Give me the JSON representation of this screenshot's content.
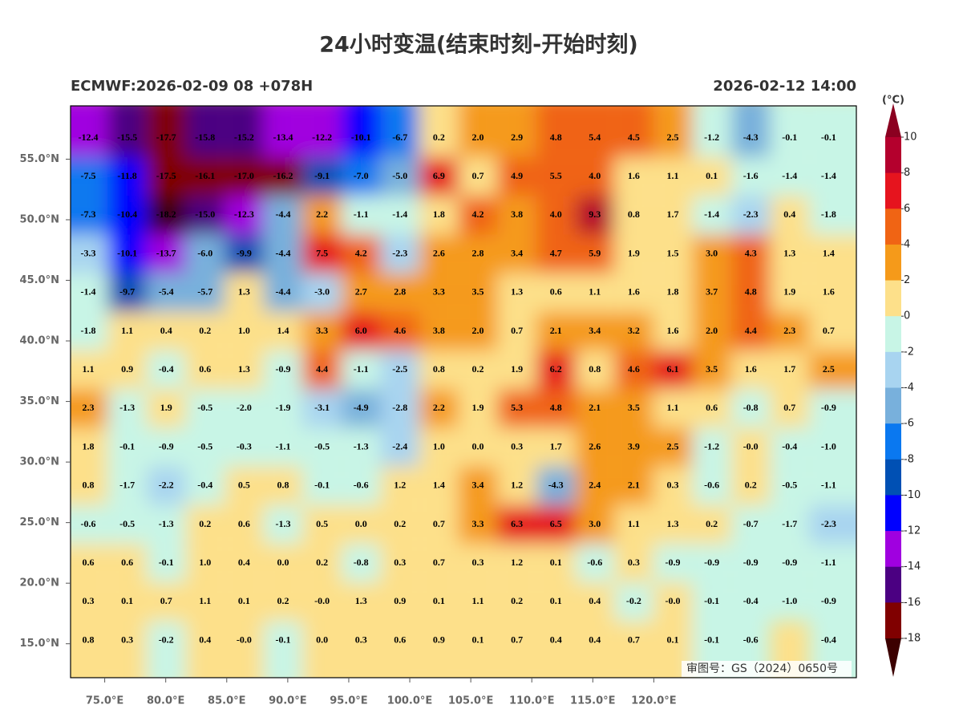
{
  "header": {
    "title": "24小时变温(结束时刻-开始时刻)",
    "subtitle_left": "ECMWF:2026-02-09 08 +078H",
    "subtitle_right": "2026-02-12 14:00"
  },
  "map": {
    "xlim": [
      72.2,
      136.6
    ],
    "ylim": [
      12.2,
      59.4
    ],
    "xticks": [
      {
        "value": 75,
        "label": "75.0°E"
      },
      {
        "value": 80,
        "label": "80.0°E"
      },
      {
        "value": 85,
        "label": "85.0°E"
      },
      {
        "value": 90,
        "label": "90.0°E"
      },
      {
        "value": 95,
        "label": "95.0°E"
      },
      {
        "value": 100,
        "label": "100.0°E"
      },
      {
        "value": 105,
        "label": "105.0°E"
      },
      {
        "value": 110,
        "label": "110.0°E"
      },
      {
        "value": 115,
        "label": "115.0°E"
      },
      {
        "value": 120,
        "label": "120.0°E"
      }
    ],
    "yticks": [
      {
        "value": 55,
        "label": "55.0°N"
      },
      {
        "value": 50,
        "label": "50.0°N"
      },
      {
        "value": 45,
        "label": "45.0°N"
      },
      {
        "value": 40,
        "label": "40.0°N"
      },
      {
        "value": 35,
        "label": "35.0°N"
      },
      {
        "value": 30,
        "label": "30.0°N"
      },
      {
        "value": 25,
        "label": "25.0°N"
      },
      {
        "value": 20,
        "label": "20.0°N"
      },
      {
        "value": 15,
        "label": "15.0°N"
      }
    ],
    "grid_values": [
      [
        "-12.4",
        "-15.5",
        "-17.7",
        "-15.8",
        "-15.2",
        "-13.4",
        "-12.2",
        "-10.1",
        "-6.7",
        "0.2",
        "2.0",
        "2.9",
        "4.8",
        "5.4",
        "4.5",
        "2.5",
        "-1.2",
        "-4.3",
        "-0.1",
        "-0.1"
      ],
      [
        "-7.5",
        "-11.8",
        "-17.5",
        "-16.1",
        "-17.0",
        "-16.2",
        "-9.1",
        "-7.0",
        "-5.0",
        "6.9",
        "0.7",
        "4.9",
        "5.5",
        "4.0",
        "1.6",
        "1.1",
        "0.1",
        "-1.6",
        "-1.4",
        "-1.4"
      ],
      [
        "-7.3",
        "-10.4",
        "-18.2",
        "-15.0",
        "-12.3",
        "-4.4",
        "2.2",
        "-1.1",
        "-1.4",
        "1.8",
        "4.2",
        "3.8",
        "4.0",
        "9.3",
        "0.8",
        "1.7",
        "-1.4",
        "-2.3",
        "0.4",
        "-1.8"
      ],
      [
        "-3.3",
        "-10.1",
        "-13.7",
        "-6.0",
        "-9.9",
        "-4.4",
        "7.5",
        "4.2",
        "-2.3",
        "2.6",
        "2.8",
        "3.4",
        "4.7",
        "5.9",
        "1.9",
        "1.5",
        "3.0",
        "4.3",
        "1.3",
        "1.4"
      ],
      [
        "-1.4",
        "-9.7",
        "-5.4",
        "-5.7",
        "1.3",
        "-4.4",
        "-3.0",
        "2.7",
        "2.8",
        "3.3",
        "3.5",
        "1.3",
        "0.6",
        "1.1",
        "1.6",
        "1.8",
        "3.7",
        "4.8",
        "1.9",
        "1.6"
      ],
      [
        "-1.8",
        "1.1",
        "0.4",
        "0.2",
        "1.0",
        "1.4",
        "3.3",
        "6.0",
        "4.6",
        "3.8",
        "2.0",
        "0.7",
        "2.1",
        "3.4",
        "3.2",
        "1.6",
        "2.0",
        "4.4",
        "2.3",
        "0.7"
      ],
      [
        "1.1",
        "0.9",
        "-0.4",
        "0.6",
        "1.3",
        "-0.9",
        "4.4",
        "-1.1",
        "-2.5",
        "0.8",
        "0.2",
        "1.9",
        "6.2",
        "0.8",
        "4.6",
        "6.1",
        "3.5",
        "1.6",
        "1.7",
        "2.5"
      ],
      [
        "2.3",
        "-1.3",
        "1.9",
        "-0.5",
        "-2.0",
        "-1.9",
        "-3.1",
        "-4.9",
        "-2.8",
        "2.2",
        "1.9",
        "5.3",
        "4.8",
        "2.1",
        "3.5",
        "1.1",
        "0.6",
        "-0.8",
        "0.7",
        "-0.9"
      ],
      [
        "1.8",
        "-0.1",
        "-0.9",
        "-0.5",
        "-0.3",
        "-1.1",
        "-0.5",
        "-1.3",
        "-2.4",
        "1.0",
        "0.0",
        "0.3",
        "1.7",
        "2.6",
        "3.9",
        "2.5",
        "-1.2",
        "-0.0",
        "-0.4",
        "-1.0"
      ],
      [
        "0.8",
        "-1.7",
        "-2.2",
        "-0.4",
        "0.5",
        "0.8",
        "-0.1",
        "-0.6",
        "1.2",
        "1.4",
        "3.4",
        "1.2",
        "-4.3",
        "2.4",
        "2.1",
        "0.3",
        "-0.6",
        "0.2",
        "-0.5",
        "-1.1"
      ],
      [
        "-0.6",
        "-0.5",
        "-1.3",
        "0.2",
        "0.6",
        "-1.3",
        "0.5",
        "0.0",
        "0.2",
        "0.7",
        "3.3",
        "6.3",
        "6.5",
        "3.0",
        "1.1",
        "1.3",
        "0.2",
        "-0.7",
        "-1.7",
        "-2.3"
      ],
      [
        "0.6",
        "0.6",
        "-0.1",
        "1.0",
        "0.4",
        "0.0",
        "0.2",
        "-0.8",
        "0.3",
        "0.7",
        "0.3",
        "1.2",
        "0.1",
        "-0.6",
        "0.3",
        "-0.9",
        "-0.9",
        "-0.9",
        "-0.9",
        "-1.1"
      ],
      [
        "0.3",
        "0.1",
        "0.7",
        "1.1",
        "0.1",
        "0.2",
        "-0.0",
        "1.3",
        "0.9",
        "0.1",
        "1.1",
        "0.2",
        "0.1",
        "0.4",
        "-0.2",
        "-0.0",
        "-0.1",
        "-0.4",
        "-1.0",
        "-0.9"
      ],
      [
        "0.8",
        "0.3",
        "-0.2",
        "0.4",
        "-0.0",
        "-0.1",
        "0.0",
        "0.3",
        "0.6",
        "0.9",
        "0.1",
        "0.7",
        "0.4",
        "0.4",
        "0.7",
        "0.1",
        "-0.1",
        "-0.6",
        null,
        "-0.4"
      ]
    ],
    "approval_number": "审图号：GS（2024）0650号"
  },
  "colorbar": {
    "unit": "(°C)",
    "levels": [
      10,
      8,
      6,
      4,
      2,
      0,
      -2,
      -4,
      -6,
      -8,
      -10,
      -12,
      -14,
      -16,
      -18
    ],
    "colors": [
      "#b4002d",
      "#e6141e",
      "#f06414",
      "#f59a1a",
      "#fde08a",
      "#c8f5e6",
      "#a8d4f0",
      "#78b0dc",
      "#0a78f0",
      "#0050b4",
      "#0000ff",
      "#a000e0",
      "#4b0082",
      "#800000"
    ],
    "over_color": "#8b0020",
    "under_color": "#3c0000"
  }
}
